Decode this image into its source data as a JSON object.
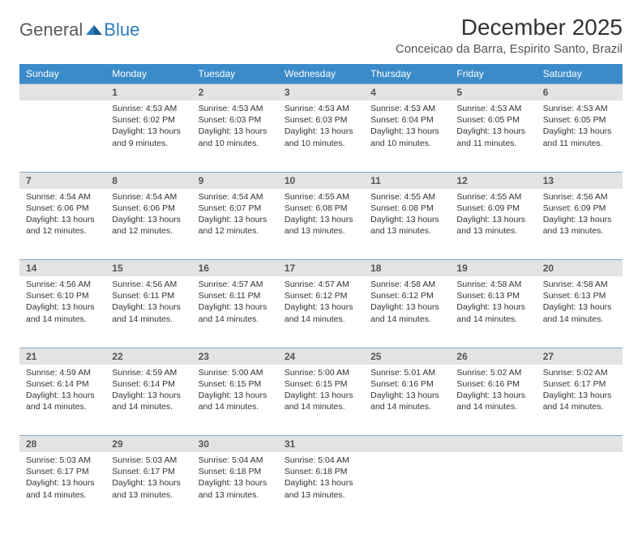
{
  "brand": {
    "general": "General",
    "blue": "Blue"
  },
  "title": "December 2025",
  "location": "Conceicao da Barra, Espirito Santo, Brazil",
  "colors": {
    "header_bg": "#3b8bc9",
    "header_text": "#ffffff",
    "daynum_bg": "#e3e3e3",
    "row_divider": "#87a8c4",
    "body_text": "#333333",
    "brand_gray": "#5a5a5a",
    "brand_blue": "#2b7bbf"
  },
  "weekdays": [
    "Sunday",
    "Monday",
    "Tuesday",
    "Wednesday",
    "Thursday",
    "Friday",
    "Saturday"
  ],
  "weeks": [
    [
      null,
      {
        "n": "1",
        "sunrise": "4:53 AM",
        "sunset": "6:02 PM",
        "daylight": "13 hours and 9 minutes."
      },
      {
        "n": "2",
        "sunrise": "4:53 AM",
        "sunset": "6:03 PM",
        "daylight": "13 hours and 10 minutes."
      },
      {
        "n": "3",
        "sunrise": "4:53 AM",
        "sunset": "6:03 PM",
        "daylight": "13 hours and 10 minutes."
      },
      {
        "n": "4",
        "sunrise": "4:53 AM",
        "sunset": "6:04 PM",
        "daylight": "13 hours and 10 minutes."
      },
      {
        "n": "5",
        "sunrise": "4:53 AM",
        "sunset": "6:05 PM",
        "daylight": "13 hours and 11 minutes."
      },
      {
        "n": "6",
        "sunrise": "4:53 AM",
        "sunset": "6:05 PM",
        "daylight": "13 hours and 11 minutes."
      }
    ],
    [
      {
        "n": "7",
        "sunrise": "4:54 AM",
        "sunset": "6:06 PM",
        "daylight": "13 hours and 12 minutes."
      },
      {
        "n": "8",
        "sunrise": "4:54 AM",
        "sunset": "6:06 PM",
        "daylight": "13 hours and 12 minutes."
      },
      {
        "n": "9",
        "sunrise": "4:54 AM",
        "sunset": "6:07 PM",
        "daylight": "13 hours and 12 minutes."
      },
      {
        "n": "10",
        "sunrise": "4:55 AM",
        "sunset": "6:08 PM",
        "daylight": "13 hours and 13 minutes."
      },
      {
        "n": "11",
        "sunrise": "4:55 AM",
        "sunset": "6:08 PM",
        "daylight": "13 hours and 13 minutes."
      },
      {
        "n": "12",
        "sunrise": "4:55 AM",
        "sunset": "6:09 PM",
        "daylight": "13 hours and 13 minutes."
      },
      {
        "n": "13",
        "sunrise": "4:56 AM",
        "sunset": "6:09 PM",
        "daylight": "13 hours and 13 minutes."
      }
    ],
    [
      {
        "n": "14",
        "sunrise": "4:56 AM",
        "sunset": "6:10 PM",
        "daylight": "13 hours and 14 minutes."
      },
      {
        "n": "15",
        "sunrise": "4:56 AM",
        "sunset": "6:11 PM",
        "daylight": "13 hours and 14 minutes."
      },
      {
        "n": "16",
        "sunrise": "4:57 AM",
        "sunset": "6:11 PM",
        "daylight": "13 hours and 14 minutes."
      },
      {
        "n": "17",
        "sunrise": "4:57 AM",
        "sunset": "6:12 PM",
        "daylight": "13 hours and 14 minutes."
      },
      {
        "n": "18",
        "sunrise": "4:58 AM",
        "sunset": "6:12 PM",
        "daylight": "13 hours and 14 minutes."
      },
      {
        "n": "19",
        "sunrise": "4:58 AM",
        "sunset": "6:13 PM",
        "daylight": "13 hours and 14 minutes."
      },
      {
        "n": "20",
        "sunrise": "4:58 AM",
        "sunset": "6:13 PM",
        "daylight": "13 hours and 14 minutes."
      }
    ],
    [
      {
        "n": "21",
        "sunrise": "4:59 AM",
        "sunset": "6:14 PM",
        "daylight": "13 hours and 14 minutes."
      },
      {
        "n": "22",
        "sunrise": "4:59 AM",
        "sunset": "6:14 PM",
        "daylight": "13 hours and 14 minutes."
      },
      {
        "n": "23",
        "sunrise": "5:00 AM",
        "sunset": "6:15 PM",
        "daylight": "13 hours and 14 minutes."
      },
      {
        "n": "24",
        "sunrise": "5:00 AM",
        "sunset": "6:15 PM",
        "daylight": "13 hours and 14 minutes."
      },
      {
        "n": "25",
        "sunrise": "5:01 AM",
        "sunset": "6:16 PM",
        "daylight": "13 hours and 14 minutes."
      },
      {
        "n": "26",
        "sunrise": "5:02 AM",
        "sunset": "6:16 PM",
        "daylight": "13 hours and 14 minutes."
      },
      {
        "n": "27",
        "sunrise": "5:02 AM",
        "sunset": "6:17 PM",
        "daylight": "13 hours and 14 minutes."
      }
    ],
    [
      {
        "n": "28",
        "sunrise": "5:03 AM",
        "sunset": "6:17 PM",
        "daylight": "13 hours and 14 minutes."
      },
      {
        "n": "29",
        "sunrise": "5:03 AM",
        "sunset": "6:17 PM",
        "daylight": "13 hours and 13 minutes."
      },
      {
        "n": "30",
        "sunrise": "5:04 AM",
        "sunset": "6:18 PM",
        "daylight": "13 hours and 13 minutes."
      },
      {
        "n": "31",
        "sunrise": "5:04 AM",
        "sunset": "6:18 PM",
        "daylight": "13 hours and 13 minutes."
      },
      null,
      null,
      null
    ]
  ],
  "labels": {
    "sunrise": "Sunrise: ",
    "sunset": "Sunset: ",
    "daylight": "Daylight: "
  }
}
